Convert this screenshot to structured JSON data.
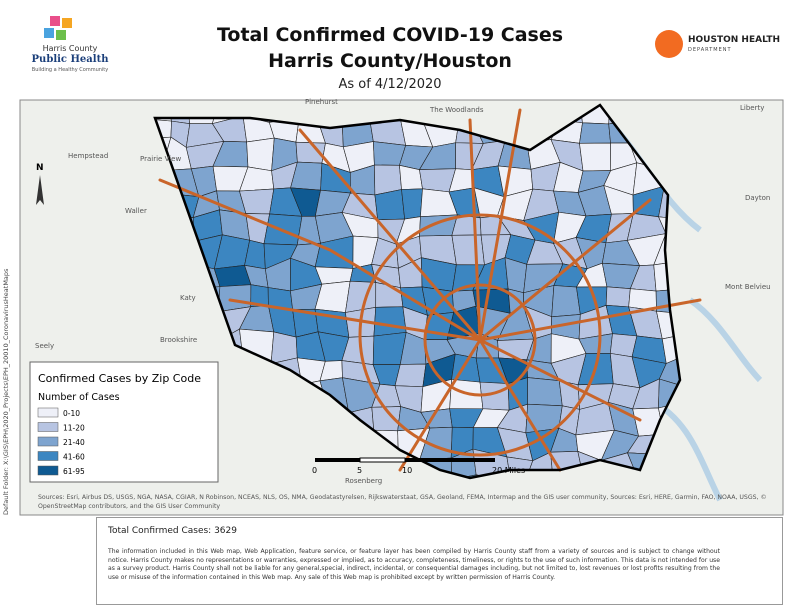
{
  "header": {
    "title": "Total Confirmed COVID-19 Cases",
    "subtitle": "Harris County/Houston",
    "date": "As of 4/12/2020",
    "left_logo": [
      "Harris County",
      "Public Health",
      "Building a Healthy Community"
    ],
    "right_logo": [
      "HOUSTON HEALTH",
      "DEPARTMENT"
    ]
  },
  "legend": {
    "title": "Confirmed Cases by Zip Code",
    "subtitle": "Number of Cases",
    "items": [
      {
        "label": "0-10",
        "color": "#eef0f8"
      },
      {
        "label": "11-20",
        "color": "#b7c4e2"
      },
      {
        "label": "21-40",
        "color": "#7ea4cf"
      },
      {
        "label": "41-60",
        "color": "#3c86c1"
      },
      {
        "label": "61-95",
        "color": "#0f5a92"
      }
    ]
  },
  "scale_bar": [
    "0",
    "5",
    "10",
    "20 Miles"
  ],
  "places": [
    "Pinehurst",
    "The Woodlands",
    "Liberty",
    "Hempstead",
    "Prairie View",
    "Waller",
    "Katy",
    "Seely",
    "Brookshire",
    "Rosenberg",
    "Mont Belvieu",
    "Dayton"
  ],
  "sources": "Sources: Esri, Airbus DS, USGS, NGA, NASA, CGIAR, N Robinson, NCEAS, NLS, OS, NMA, Geodatastyrelsen, Rijkswaterstaat, GSA, Geoland, FEMA, Intermap and the GIS user community, Sources: Esri, HERE, Garmin, FAO, NOAA, USGS, © OpenStreetMap contributors, and the GIS User Community",
  "folder": "Default Folder: X:\\GIS\\EPH\\2020_Projects\\EPH_20010_CoronavirusHeatMaps",
  "total": "Total Confirmed Cases: 3629",
  "disclaimer": "The information included in this Web map, Web Application, feature service, or feature layer has been compiled by Harris County staff from a variety of sources and is subject to change without notice. Harris County makes no representations or warranties, expressed or implied, as to accuracy, completeness, timeliness, or rights to the use of such information. This data is not intended for use as a survey product. Harris County shall not be liable for any general,special, indirect, incidental, or consequential damages including, but not limited to, lost revenues or lost profits resulting from the use or misuse of the information contained in this Web map. Any sale of this Web map is prohibited except by written permission of Harris County."
}
